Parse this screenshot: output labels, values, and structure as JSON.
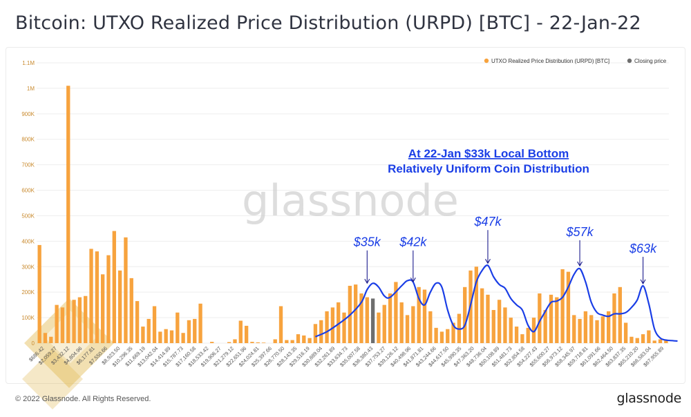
{
  "title": "Bitcoin: UTXO Realized Price Distribution (URPD) [BTC] - 22-Jan-22",
  "footer": {
    "copyright": "© 2022 Glassnode. All Rights Reserved.",
    "brand": "glassnode"
  },
  "watermark": "glassnode",
  "colors": {
    "bar": "#f7a33e",
    "closing": "#6e6e6e",
    "annotation": "#1a3ee6",
    "grid": "#eeeeee",
    "tick": "#c98a2e"
  },
  "chart_data": {
    "type": "bar",
    "ylim": [
      0,
      1100000
    ],
    "y_ticks": [
      {
        "v": 0,
        "label": "0"
      },
      {
        "v": 100000,
        "label": "100K"
      },
      {
        "v": 200000,
        "label": "200K"
      },
      {
        "v": 300000,
        "label": "300K"
      },
      {
        "v": 400000,
        "label": "400K"
      },
      {
        "v": 500000,
        "label": "500K"
      },
      {
        "v": 600000,
        "label": "600K"
      },
      {
        "v": 700000,
        "label": "700K"
      },
      {
        "v": 800000,
        "label": "800K"
      },
      {
        "v": 900000,
        "label": "900K"
      },
      {
        "v": 1000000,
        "label": "1M"
      },
      {
        "v": 1100000,
        "label": "1.1M"
      }
    ],
    "x_tick_labels": [
      "$686.42",
      "$2,059.27",
      "$3,432.12",
      "$4,804.96",
      "$6,177.81",
      "$7,550.66",
      "$8,923.50",
      "$10,296.35",
      "$11,669.19",
      "$13,042.04",
      "$14,414.89",
      "$15,787.73",
      "$17,160.58",
      "$18,533.42",
      "$19,906.27",
      "$21,279.12",
      "$22,651.96",
      "$24,024.81",
      "$25,397.66",
      "$26,770.50",
      "$28,143.35",
      "$29,516.19",
      "$30,889.04",
      "$32,261.89",
      "$33,634.73",
      "$35,007.58",
      "$36,380.43",
      "$37,753.27",
      "$39,126.12",
      "$40,498.96",
      "$41,871.81",
      "$43,244.66",
      "$44,617.50",
      "$45,990.35",
      "$47,363.20",
      "$48,736.04",
      "$50,108.89",
      "$51,481.73",
      "$52,854.58",
      "$54,227.43",
      "$55,600.27",
      "$56,973.12",
      "$58,345.97",
      "$59,718.81",
      "$61,091.66",
      "$62,464.50",
      "$63,837.35",
      "$65,210.20",
      "$66,583.04",
      "$67,955.89"
    ],
    "values": [
      385000,
      40000,
      25000,
      150000,
      140000,
      1010000,
      170000,
      180000,
      185000,
      370000,
      360000,
      270000,
      345000,
      440000,
      285000,
      415000,
      255000,
      165000,
      65000,
      95000,
      145000,
      45000,
      55000,
      50000,
      120000,
      40000,
      90000,
      95000,
      155000,
      0,
      5000,
      0,
      0,
      4000,
      15000,
      88000,
      68000,
      5000,
      3000,
      2000,
      0,
      15000,
      145000,
      12000,
      12000,
      35000,
      30000,
      20000,
      75000,
      90000,
      125000,
      140000,
      160000,
      120000,
      225000,
      230000,
      195000,
      180000,
      175000,
      120000,
      150000,
      195000,
      240000,
      160000,
      110000,
      145000,
      220000,
      210000,
      125000,
      60000,
      45000,
      55000,
      80000,
      115000,
      220000,
      285000,
      300000,
      215000,
      190000,
      130000,
      170000,
      140000,
      100000,
      65000,
      35000,
      60000,
      100000,
      195000,
      130000,
      190000,
      180000,
      290000,
      280000,
      110000,
      95000,
      125000,
      110000,
      90000,
      105000,
      125000,
      195000,
      220000,
      80000,
      25000,
      20000,
      35000,
      50000,
      10000,
      15000,
      12000
    ],
    "closing_price_index": 58,
    "series": [
      {
        "name": "UTXO Realized Price Distribution (URPD) [BTC]"
      },
      {
        "name": "Closing price"
      }
    ],
    "legend_position": "top-right",
    "trend_line": [
      [
        48,
        25000
      ],
      [
        50,
        45000
      ],
      [
        52,
        75000
      ],
      [
        54,
        110000
      ],
      [
        56,
        160000
      ],
      [
        57,
        210000
      ],
      [
        58,
        235000
      ],
      [
        59,
        220000
      ],
      [
        60,
        185000
      ],
      [
        61,
        180000
      ],
      [
        63,
        225000
      ],
      [
        64,
        245000
      ],
      [
        65,
        240000
      ],
      [
        66,
        175000
      ],
      [
        67,
        150000
      ],
      [
        68,
        200000
      ],
      [
        69,
        235000
      ],
      [
        70,
        220000
      ],
      [
        71,
        130000
      ],
      [
        72,
        70000
      ],
      [
        73,
        55000
      ],
      [
        74,
        70000
      ],
      [
        75,
        150000
      ],
      [
        76,
        240000
      ],
      [
        77,
        285000
      ],
      [
        78,
        305000
      ],
      [
        79,
        260000
      ],
      [
        80,
        230000
      ],
      [
        81,
        215000
      ],
      [
        82,
        175000
      ],
      [
        83,
        150000
      ],
      [
        84,
        130000
      ],
      [
        85,
        70000
      ],
      [
        86,
        45000
      ],
      [
        87,
        85000
      ],
      [
        88,
        125000
      ],
      [
        89,
        160000
      ],
      [
        90,
        165000
      ],
      [
        91,
        180000
      ],
      [
        92,
        220000
      ],
      [
        93,
        270000
      ],
      [
        94,
        292000
      ],
      [
        95,
        240000
      ],
      [
        96,
        160000
      ],
      [
        97,
        120000
      ],
      [
        98,
        110000
      ],
      [
        99,
        105000
      ],
      [
        100,
        115000
      ],
      [
        101,
        115000
      ],
      [
        102,
        120000
      ],
      [
        103,
        140000
      ],
      [
        104,
        170000
      ],
      [
        105,
        225000
      ],
      [
        106,
        155000
      ],
      [
        107,
        55000
      ],
      [
        108,
        20000
      ],
      [
        109,
        12000
      ],
      [
        110,
        10000
      ],
      [
        111,
        8000
      ]
    ],
    "annotations": [
      {
        "label": "$35k",
        "index": 57,
        "arrow_to": 230000,
        "text_at": 380000
      },
      {
        "label": "$42k",
        "index": 65,
        "arrow_to": 235000,
        "text_at": 380000
      },
      {
        "label": "$47k",
        "index": 78,
        "arrow_to": 308000,
        "text_at": 460000
      },
      {
        "label": "$57k",
        "index": 94,
        "arrow_to": 298000,
        "text_at": 420000
      },
      {
        "label": "$63k",
        "index": 105,
        "arrow_to": 228000,
        "text_at": 355000
      }
    ],
    "headline": {
      "line1": "At 22-Jan $33k Local Bottom",
      "line2": "Relatively Uniform Coin Distribution"
    }
  }
}
